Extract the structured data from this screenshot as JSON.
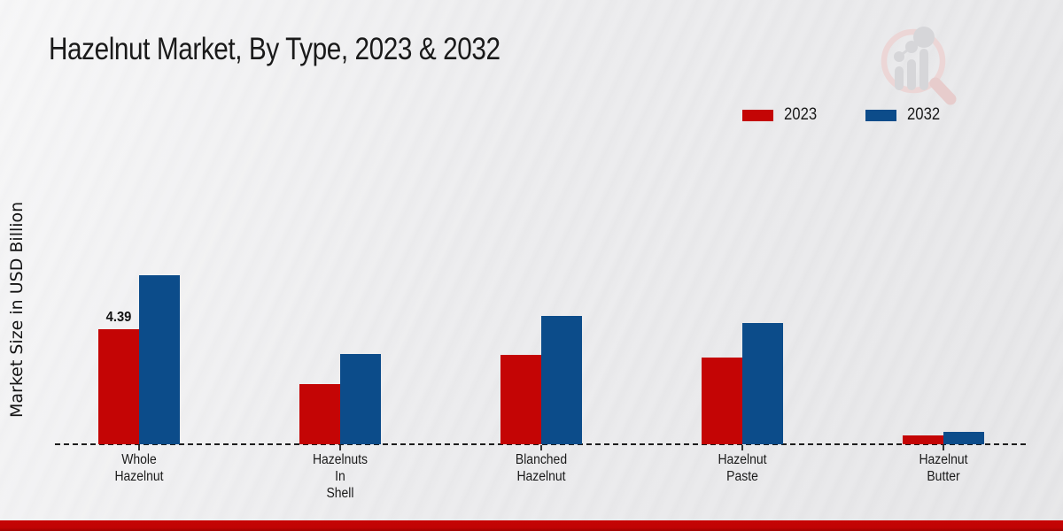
{
  "page": {
    "title": "Hazelnut Market, By Type, 2023 & 2032",
    "y_axis_label": "Market Size in USD Billion"
  },
  "watermark": {
    "icon": "magnifier-bar-chart-logo",
    "ring_color": "#ecd6d6",
    "bar_color": "#d6d6d9"
  },
  "footer": {
    "accent_color": "#c00404"
  },
  "chart_data": {
    "type": "bar",
    "title": "Hazelnut Market, By Type, 2023 & 2032",
    "xlabel": "",
    "ylabel": "Market Size in USD Billion",
    "categories": [
      "Whole Hazelnut",
      "Hazelnuts In Shell",
      "Blanched Hazelnut",
      "Hazelnut Paste",
      "Hazelnut Butter"
    ],
    "category_label_lines": [
      "Whole\nHazelnut",
      "Hazelnuts\nIn\nShell",
      "Blanched\nHazelnut",
      "Hazelnut\nPaste",
      "Hazelnut\nButter"
    ],
    "series": [
      {
        "name": "2023",
        "color": "#c40505",
        "values": [
          4.39,
          2.31,
          3.41,
          3.31,
          0.34
        ]
      },
      {
        "name": "2032",
        "color": "#0c4c8a",
        "values": [
          6.45,
          3.44,
          4.9,
          4.63,
          0.47
        ]
      }
    ],
    "data_labels": [
      {
        "series_index": 0,
        "category_index": 0,
        "text": "4.39"
      }
    ],
    "ylim": [
      0,
      7
    ],
    "grid": false,
    "y_tick_labels_shown": false,
    "legend_position": "top-right",
    "x_axis_style": "dashed"
  }
}
